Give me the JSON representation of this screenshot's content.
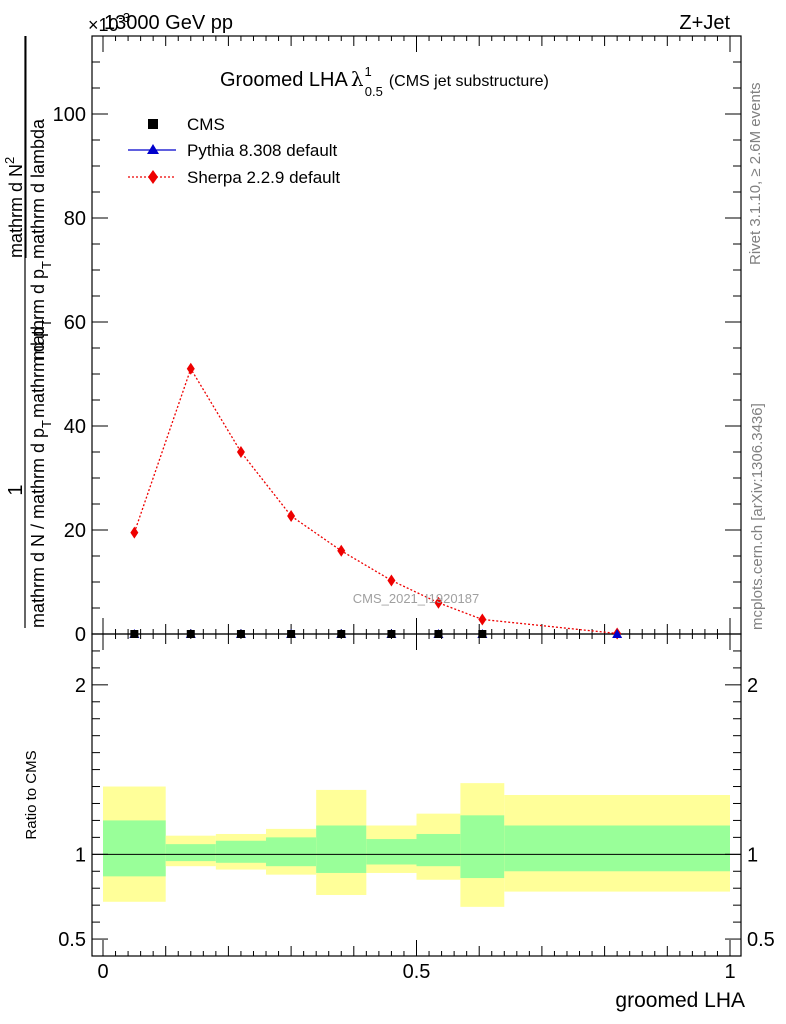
{
  "header": {
    "energy_label": "13000 GeV pp",
    "process_label": "Z+Jet",
    "exponent_label": "×10",
    "exponent_power": "-3"
  },
  "side_labels": {
    "rivet": "Rivet 3.1.10, ≥ 2.6M events",
    "mcplots": "mcplots.cern.ch [arXiv:1306.3436]"
  },
  "watermark": "CMS_2021_I1920187",
  "main_title": {
    "text": "Groomed LHA",
    "symbol": "λ",
    "sub": "0.5",
    "sup": "1",
    "note": "(CMS jet substructure)"
  },
  "y_axis_label": {
    "numerator": "1",
    "denominator": "mathrm d N / mathrm d p",
    "sub": "T",
    "tail": "mathrm d p",
    "sub2": "T",
    "frac2_num": "mathrm d N",
    "frac2_den": "mathrm d p",
    "frac2_sub": "T",
    "frac2_tail": "mathrm d lambda",
    "frac2_sup": "2"
  },
  "ratio_ylabel": "Ratio to CMS",
  "x_axis_label": "groomed LHA",
  "colors": {
    "cms": "#000000",
    "pythia": "#0000cc",
    "sherpa": "#ee0000",
    "band_inner": "#99ff99",
    "band_outer": "#ffff99"
  },
  "chart_data": {
    "type": "line",
    "x_range": [
      0,
      1
    ],
    "main_ylim": [
      0,
      115
    ],
    "main_yticks": [
      0,
      20,
      40,
      60,
      80,
      100
    ],
    "ratio_ylim": [
      0.4,
      2.3
    ],
    "ratio_yticks": [
      0.5,
      1,
      2
    ],
    "ratio_ytick_labels": [
      "0.5",
      "1",
      "2"
    ],
    "x_ticks": [
      0,
      0.5,
      1
    ],
    "x_tick_labels": [
      "0",
      "0.5",
      "1"
    ],
    "legend": [
      {
        "name": "CMS",
        "marker": "square",
        "color": "#000000"
      },
      {
        "name": "Pythia 8.308 default",
        "marker": "triangle",
        "color": "#0000cc"
      },
      {
        "name": "Sherpa 2.2.9 default",
        "marker": "diamond",
        "color": "#ee0000"
      }
    ],
    "series": [
      {
        "name": "CMS",
        "x": [
          0.05,
          0.14,
          0.22,
          0.3,
          0.38,
          0.46,
          0.535,
          0.605
        ],
        "y": [
          0,
          0,
          0,
          0,
          0,
          0,
          0,
          0
        ]
      },
      {
        "name": "Pythia 8.308 default",
        "x": [
          0.05,
          0.14,
          0.22,
          0.3,
          0.38,
          0.46,
          0.535,
          0.605,
          0.82
        ],
        "y": [
          0,
          0,
          0,
          0,
          0,
          0,
          0,
          0,
          0
        ]
      },
      {
        "name": "Sherpa 2.2.9 default",
        "x": [
          0.05,
          0.14,
          0.22,
          0.3,
          0.38,
          0.46,
          0.535,
          0.605,
          0.82
        ],
        "y": [
          19.5,
          51,
          35,
          22.7,
          16,
          10.3,
          6.0,
          2.8,
          0.1
        ]
      }
    ],
    "ratio_bands": [
      {
        "x0": 0.0,
        "x1": 0.1,
        "outer": [
          0.72,
          1.4
        ],
        "inner": [
          0.87,
          1.2
        ]
      },
      {
        "x0": 0.1,
        "x1": 0.18,
        "outer": [
          0.93,
          1.11
        ],
        "inner": [
          0.96,
          1.06
        ]
      },
      {
        "x0": 0.18,
        "x1": 0.26,
        "outer": [
          0.91,
          1.12
        ],
        "inner": [
          0.95,
          1.08
        ]
      },
      {
        "x0": 0.26,
        "x1": 0.34,
        "outer": [
          0.88,
          1.15
        ],
        "inner": [
          0.93,
          1.1
        ]
      },
      {
        "x0": 0.34,
        "x1": 0.42,
        "outer": [
          0.76,
          1.38
        ],
        "inner": [
          0.89,
          1.17
        ]
      },
      {
        "x0": 0.42,
        "x1": 0.5,
        "outer": [
          0.89,
          1.17
        ],
        "inner": [
          0.94,
          1.09
        ]
      },
      {
        "x0": 0.5,
        "x1": 0.57,
        "outer": [
          0.85,
          1.24
        ],
        "inner": [
          0.93,
          1.12
        ]
      },
      {
        "x0": 0.57,
        "x1": 0.64,
        "outer": [
          0.69,
          1.42
        ],
        "inner": [
          0.86,
          1.23
        ]
      },
      {
        "x0": 0.64,
        "x1": 1.0,
        "outer": [
          0.78,
          1.35
        ],
        "inner": [
          0.9,
          1.17
        ]
      }
    ]
  }
}
